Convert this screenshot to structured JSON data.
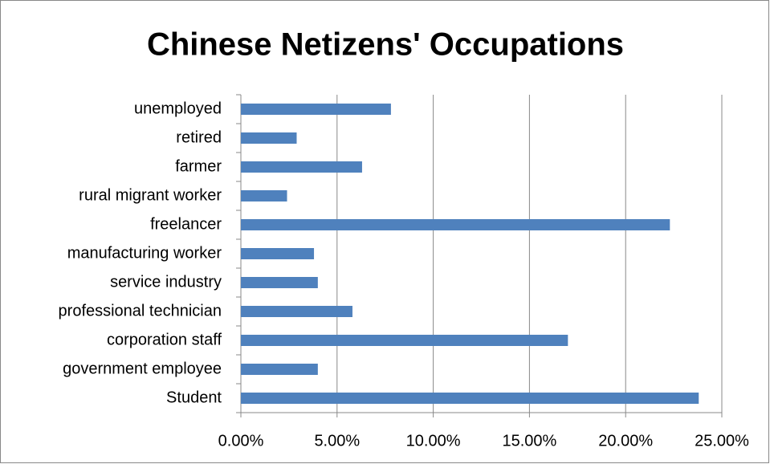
{
  "chart_data": {
    "type": "bar",
    "orientation": "horizontal",
    "title": "Chinese Netizens' Occupations",
    "categories": [
      "Student",
      "government employee",
      "corporation staff",
      "professional technician",
      "service industry",
      "manufacturing worker",
      "freelancer",
      "rural migrant worker",
      "farmer",
      "retired",
      "unemployed"
    ],
    "values": [
      23.8,
      4.0,
      17.0,
      5.8,
      4.0,
      3.8,
      22.3,
      2.4,
      6.3,
      2.9,
      7.8
    ],
    "color": "#4f81bd",
    "xlim": [
      0,
      25
    ],
    "xticks": [
      {
        "value": 0,
        "label": "0.00%"
      },
      {
        "value": 5,
        "label": "5.00%"
      },
      {
        "value": 10,
        "label": "10.00%"
      },
      {
        "value": 15,
        "label": "15.00%"
      },
      {
        "value": 20,
        "label": "20.00%"
      },
      {
        "value": 25,
        "label": "25.00%"
      }
    ],
    "grid": true
  }
}
